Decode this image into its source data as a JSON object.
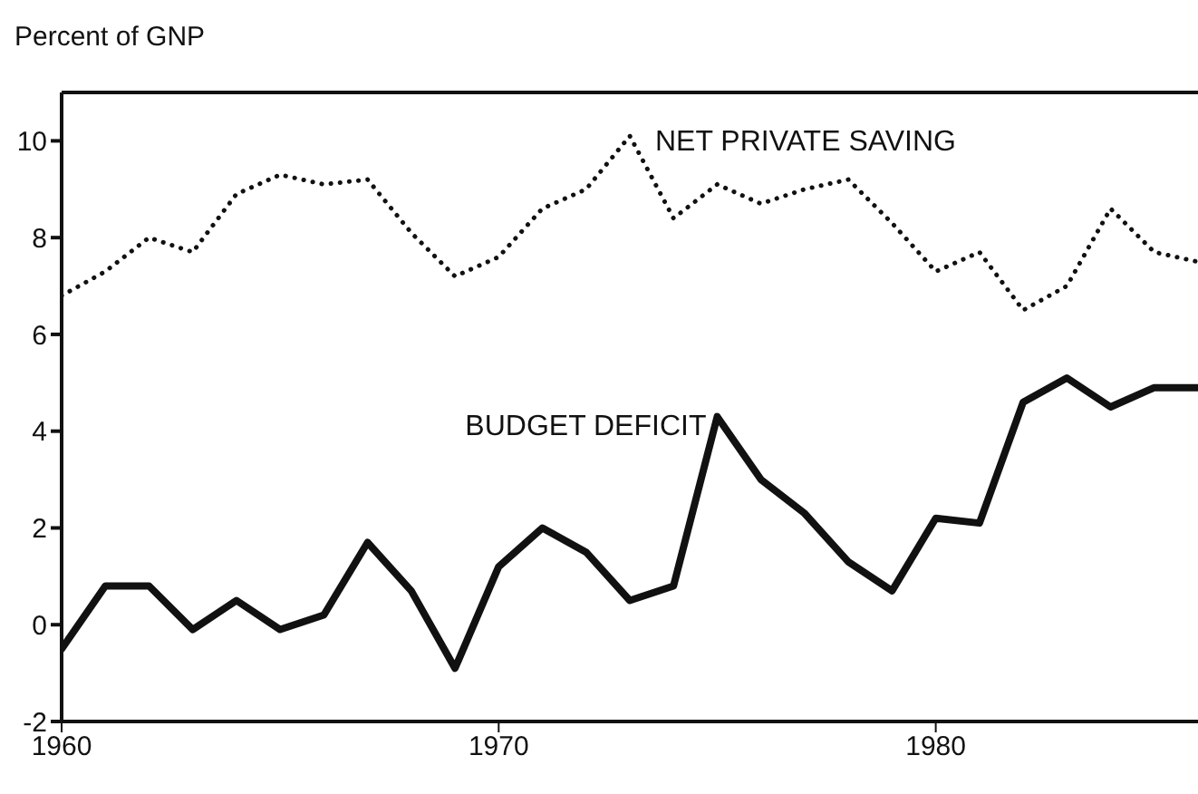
{
  "chart_data": {
    "type": "line",
    "ylabel": "Percent of GNP",
    "x": [
      1960,
      1961,
      1962,
      1963,
      1964,
      1965,
      1966,
      1967,
      1968,
      1969,
      1970,
      1971,
      1972,
      1973,
      1974,
      1975,
      1976,
      1977,
      1978,
      1979,
      1980,
      1981,
      1982,
      1983,
      1984,
      1985,
      1986
    ],
    "series": [
      {
        "name": "BUDGET DEFICIT",
        "color": "#111111",
        "line_style": "solid",
        "values": [
          -0.5,
          0.8,
          0.8,
          -0.1,
          0.5,
          -0.1,
          0.2,
          1.7,
          0.7,
          -0.9,
          1.2,
          2.0,
          1.5,
          0.5,
          0.8,
          4.3,
          3.0,
          2.3,
          1.3,
          0.7,
          2.2,
          2.1,
          4.6,
          5.1,
          4.5,
          4.9,
          4.9
        ]
      },
      {
        "name": "NET PRIVATE SAVING",
        "color": "#111111",
        "line_style": "dotted",
        "values": [
          6.8,
          7.3,
          8.0,
          7.7,
          8.9,
          9.3,
          9.1,
          9.2,
          8.1,
          7.2,
          7.6,
          8.6,
          9.0,
          10.1,
          8.4,
          9.1,
          8.7,
          9.0,
          9.2,
          8.3,
          7.3,
          7.7,
          6.5,
          7.0,
          8.6,
          7.7,
          7.5
        ]
      }
    ],
    "xlim": [
      1960,
      1986
    ],
    "xticks": [
      1960,
      1970,
      1980
    ],
    "ylim": [
      -2,
      11
    ],
    "yticks": [
      -2,
      0,
      2,
      4,
      6,
      8,
      10
    ],
    "grid": false,
    "legend": false,
    "marker": "none"
  }
}
